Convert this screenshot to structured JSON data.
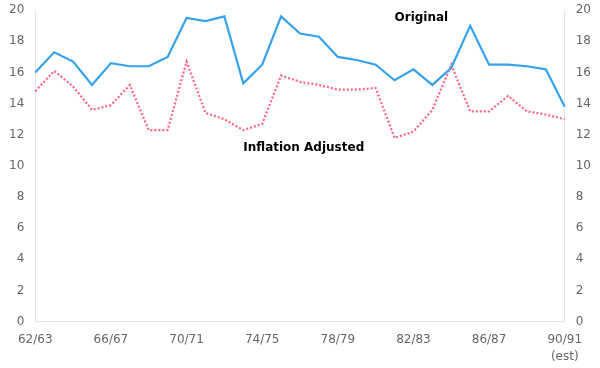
{
  "chart_data": {
    "type": "line",
    "categories": [
      "62/63",
      null,
      null,
      null,
      "66/67",
      null,
      null,
      null,
      "70/71",
      null,
      null,
      null,
      "74/75",
      null,
      null,
      null,
      "78/79",
      null,
      null,
      null,
      "82/83",
      null,
      null,
      null,
      "86/87",
      null,
      null,
      null,
      "90/91"
    ],
    "series": [
      {
        "name": "Original",
        "line_style": "solid",
        "values": [
          16.0,
          17.3,
          16.7,
          15.2,
          16.6,
          16.4,
          16.4,
          17.0,
          19.5,
          19.3,
          19.6,
          15.3,
          16.5,
          19.6,
          18.5,
          18.3,
          17.0,
          16.8,
          16.5,
          15.5,
          16.2,
          15.2,
          16.3,
          19.0,
          16.5,
          16.5,
          16.4,
          16.2,
          13.8
        ]
      },
      {
        "name": "Inflation Adjusted",
        "line_style": "dotted",
        "values": [
          14.8,
          16.1,
          15.1,
          13.6,
          13.9,
          15.2,
          12.3,
          12.3,
          16.7,
          13.4,
          13.0,
          12.3,
          12.7,
          15.8,
          15.4,
          15.2,
          14.9,
          14.9,
          15.0,
          11.8,
          12.2,
          13.6,
          16.5,
          13.5,
          13.5,
          14.5,
          13.5,
          13.3,
          13.0
        ]
      }
    ],
    "ylim": [
      0,
      20
    ],
    "yticks": [
      0,
      2,
      4,
      6,
      8,
      10,
      12,
      14,
      16,
      18,
      20
    ],
    "y2lim": [
      0,
      20
    ],
    "y2ticks": [
      0,
      2,
      4,
      6,
      8,
      10,
      12,
      14,
      16,
      18,
      20
    ],
    "grid": false,
    "annotations": [
      "(est)"
    ]
  }
}
